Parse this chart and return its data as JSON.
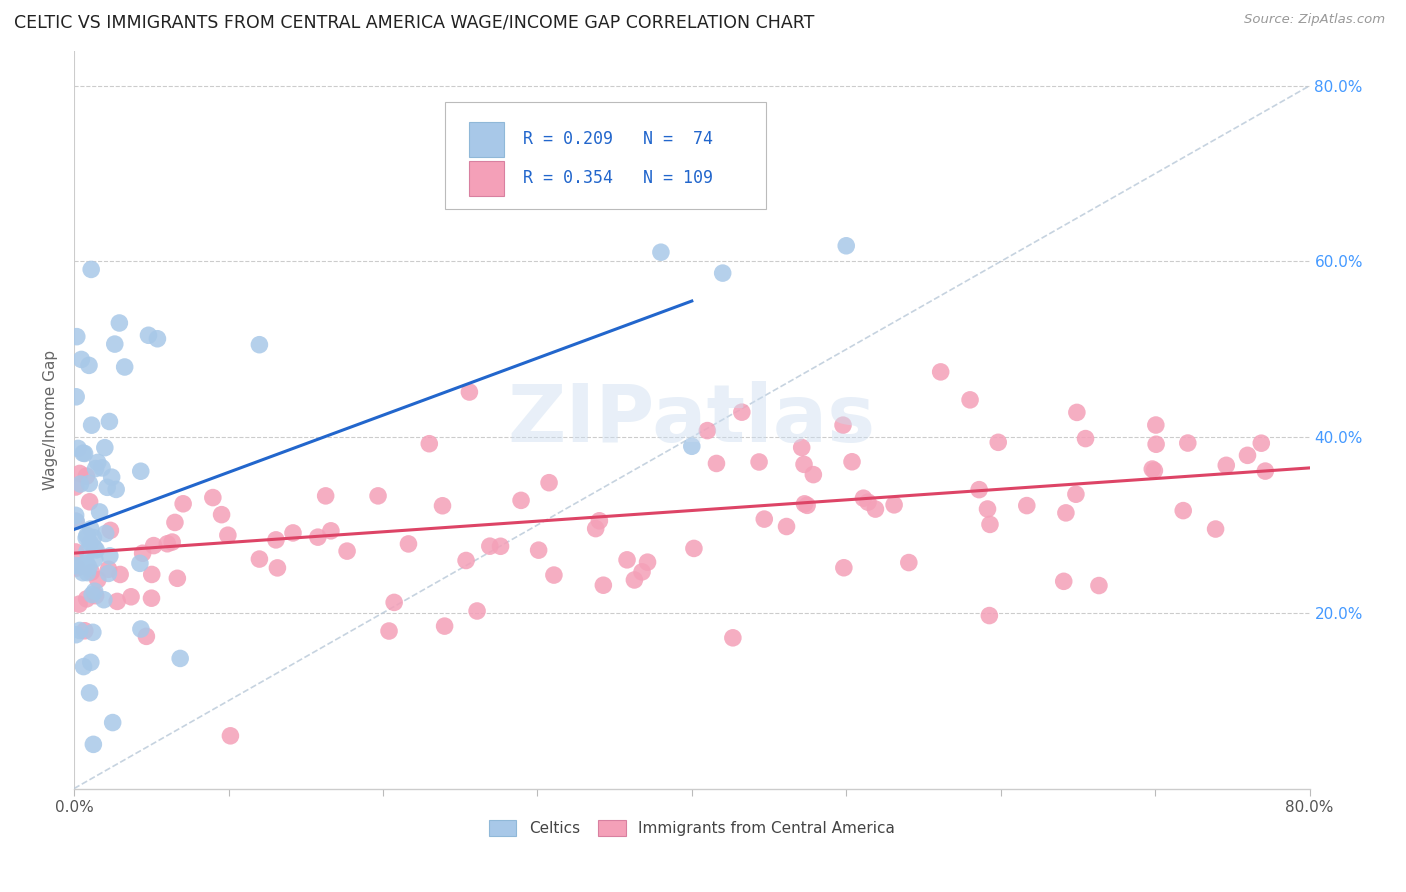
{
  "title": "CELTIC VS IMMIGRANTS FROM CENTRAL AMERICA WAGE/INCOME GAP CORRELATION CHART",
  "source": "Source: ZipAtlas.com",
  "ylabel": "Wage/Income Gap",
  "xmin": 0.0,
  "xmax": 0.8,
  "ymin": 0.0,
  "ymax": 0.84,
  "celtics_color": "#a8c8e8",
  "celtics_edge_color": "#7aaad0",
  "immigrants_color": "#f4a0b8",
  "immigrants_edge_color": "#d87090",
  "celtics_line_color": "#2266cc",
  "immigrants_line_color": "#dd4466",
  "diagonal_color": "#b8c8d8",
  "R_celtics": 0.209,
  "N_celtics": 74,
  "R_immigrants": 0.354,
  "N_immigrants": 109,
  "legend_text_color": "#2266cc",
  "watermark": "ZIPatlas",
  "celtics_line_x0": 0.0,
  "celtics_line_y0": 0.295,
  "celtics_line_x1": 0.4,
  "celtics_line_y1": 0.555,
  "immigrants_line_x0": 0.0,
  "immigrants_line_y0": 0.268,
  "immigrants_line_x1": 0.8,
  "immigrants_line_y1": 0.365
}
